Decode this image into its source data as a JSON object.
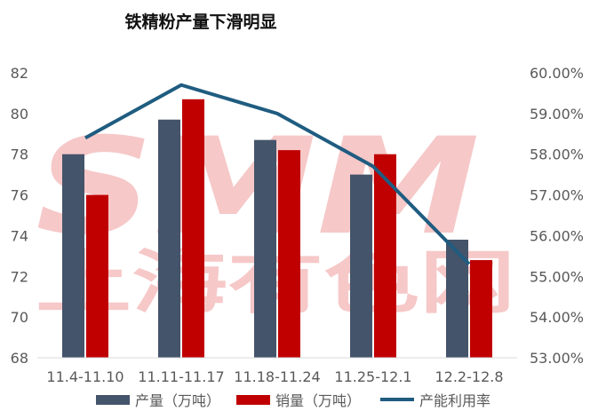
{
  "chart_data": {
    "type": "bar",
    "title": "铁精粉产量下滑明显",
    "categories": [
      "11.4-11.10",
      "11.11-11.17",
      "11.18-11.24",
      "11.25-12.1",
      "12.2-12.8"
    ],
    "series": [
      {
        "name": "产量（万吨）",
        "type": "bar",
        "axis": "left",
        "color": "#44546A",
        "values": [
          78.0,
          79.7,
          78.7,
          77.0,
          73.8
        ]
      },
      {
        "name": "销量（万吨）",
        "type": "bar",
        "axis": "left",
        "color": "#C00000",
        "values": [
          76.0,
          80.7,
          78.2,
          78.0,
          72.8
        ]
      },
      {
        "name": "产能利用率",
        "type": "line",
        "axis": "right",
        "color": "#1F5C80",
        "values": [
          58.4,
          59.7,
          59.0,
          57.7,
          55.3
        ]
      }
    ],
    "y_left": {
      "min": 68,
      "max": 82,
      "step": 2,
      "tick_labels": [
        "68",
        "70",
        "72",
        "74",
        "76",
        "78",
        "80",
        "82"
      ]
    },
    "y_right": {
      "min": 53,
      "max": 60,
      "step": 1,
      "unit": "%",
      "tick_labels": [
        "53.00%",
        "54.00%",
        "55.00%",
        "56.00%",
        "57.00%",
        "58.00%",
        "59.00%",
        "60.00%"
      ]
    },
    "grid": false,
    "legend": "bottom",
    "watermark": {
      "logo_text": "SMM",
      "text": "上海有色网",
      "color": "#F4B6B6"
    }
  }
}
